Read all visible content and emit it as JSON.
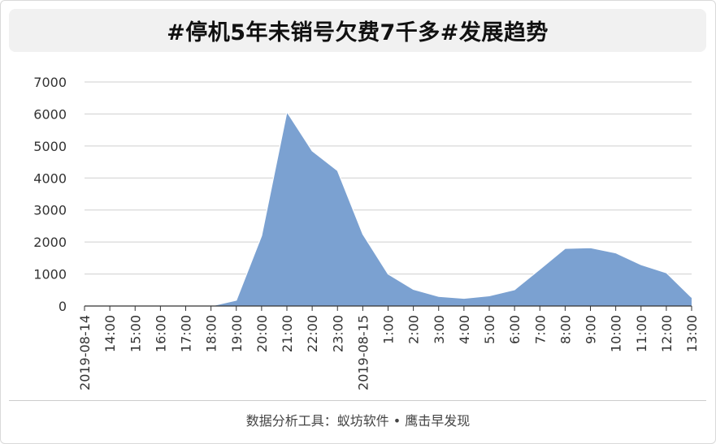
{
  "title": "#停机5年未销号欠费7千多#发展趋势",
  "footer": "数据分析工具：蚁坊软件 • 鹰击早发现",
  "colors": {
    "area_fill": "#7ba1d1",
    "area_stroke": "#ffffff",
    "grid": "#cfcfcf",
    "axis": "#333333"
  },
  "chart_data": {
    "type": "area",
    "title": "#停机5年未销号欠费7千多#发展趋势",
    "xlabel": "",
    "ylabel": "",
    "ylim": [
      0,
      7000
    ],
    "yticks": [
      0,
      1000,
      2000,
      3000,
      4000,
      5000,
      6000,
      7000
    ],
    "grid": true,
    "legend": "none",
    "categories": [
      "2019-08-14",
      "14:00",
      "15:00",
      "16:00",
      "17:00",
      "18:00",
      "19:00",
      "20:00",
      "21:00",
      "22:00",
      "23:00",
      "2019-08-15",
      "1:00",
      "2:00",
      "3:00",
      "4:00",
      "5:00",
      "6:00",
      "7:00",
      "8:00",
      "9:00",
      "10:00",
      "11:00",
      "12:00",
      "13:00"
    ],
    "series": [
      {
        "values": [
          0,
          0,
          0,
          0,
          0,
          0,
          180,
          2200,
          6070,
          4850,
          4230,
          2250,
          1000,
          520,
          300,
          240,
          320,
          510,
          1150,
          1800,
          1820,
          1660,
          1290,
          1040,
          270
        ]
      }
    ]
  }
}
